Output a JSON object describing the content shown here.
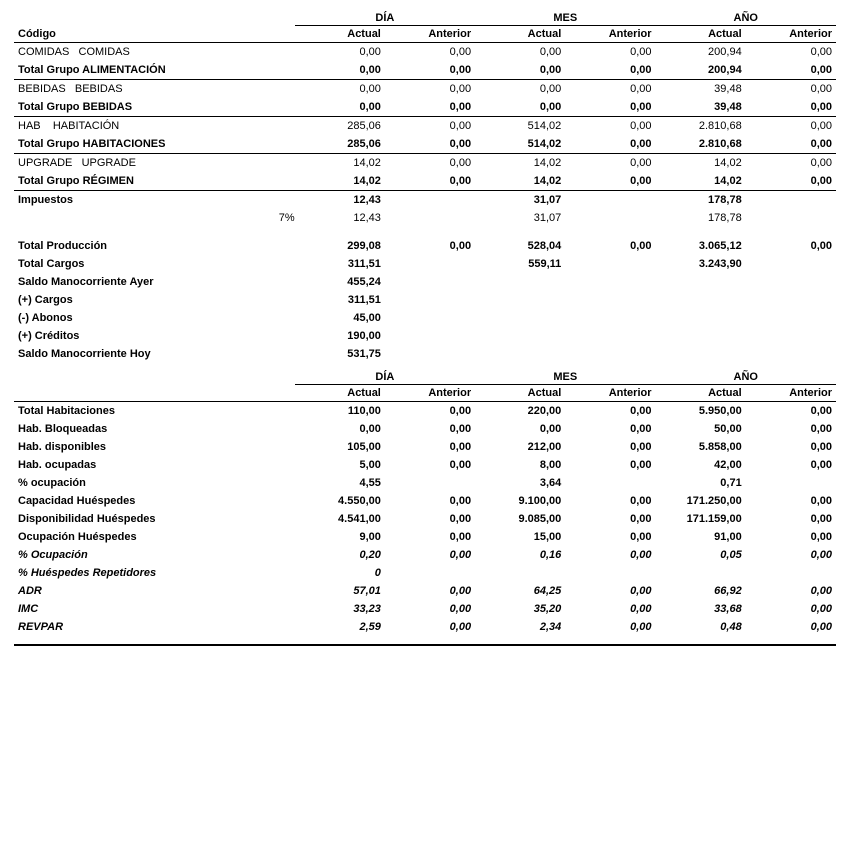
{
  "headers": {
    "codigo": "Código",
    "periods": [
      "DÍA",
      "MES",
      "AÑO"
    ],
    "sub": [
      "Actual",
      "Anterior"
    ]
  },
  "section1": {
    "rows": [
      {
        "label": "COMIDAS   COMIDAS",
        "bold": false,
        "dia_a": "0,00",
        "dia_p": "0,00",
        "mes_a": "0,00",
        "mes_p": "0,00",
        "ano_a": "200,94",
        "ano_p": "0,00"
      },
      {
        "label": "Total Grupo ALIMENTACIÓN",
        "bold": true,
        "sep": true,
        "dia_a": "0,00",
        "dia_p": "0,00",
        "mes_a": "0,00",
        "mes_p": "0,00",
        "ano_a": "200,94",
        "ano_p": "0,00"
      },
      {
        "label": "BEBIDAS   BEBIDAS",
        "bold": false,
        "dia_a": "0,00",
        "dia_p": "0,00",
        "mes_a": "0,00",
        "mes_p": "0,00",
        "ano_a": "39,48",
        "ano_p": "0,00"
      },
      {
        "label": "Total Grupo BEBIDAS",
        "bold": true,
        "sep": true,
        "dia_a": "0,00",
        "dia_p": "0,00",
        "mes_a": "0,00",
        "mes_p": "0,00",
        "ano_a": "39,48",
        "ano_p": "0,00"
      },
      {
        "label": "HAB    HABITACIÓN",
        "bold": false,
        "dia_a": "285,06",
        "dia_p": "0,00",
        "mes_a": "514,02",
        "mes_p": "0,00",
        "ano_a": "2.810,68",
        "ano_p": "0,00"
      },
      {
        "label": "Total Grupo HABITACIONES",
        "bold": true,
        "sep": true,
        "dia_a": "285,06",
        "dia_p": "0,00",
        "mes_a": "514,02",
        "mes_p": "0,00",
        "ano_a": "2.810,68",
        "ano_p": "0,00"
      },
      {
        "label": "UPGRADE   UPGRADE",
        "bold": false,
        "dia_a": "14,02",
        "dia_p": "0,00",
        "mes_a": "14,02",
        "mes_p": "0,00",
        "ano_a": "14,02",
        "ano_p": "0,00"
      },
      {
        "label": "Total Grupo RÉGIMEN",
        "bold": true,
        "sep": true,
        "dia_a": "14,02",
        "dia_p": "0,00",
        "mes_a": "14,02",
        "mes_p": "0,00",
        "ano_a": "14,02",
        "ano_p": "0,00"
      },
      {
        "label": "Impuestos",
        "bold": true,
        "dia_a": "12,43",
        "dia_p": "",
        "mes_a": "31,07",
        "mes_p": "",
        "ano_a": "178,78",
        "ano_p": ""
      },
      {
        "label": "",
        "rate": "7%",
        "bold": false,
        "dia_a": "12,43",
        "dia_p": "",
        "mes_a": "31,07",
        "mes_p": "",
        "ano_a": "178,78",
        "ano_p": ""
      },
      {
        "spacer": true
      },
      {
        "label": "Total Producción",
        "bold": true,
        "dia_a": "299,08",
        "dia_p": "0,00",
        "mes_a": "528,04",
        "mes_p": "0,00",
        "ano_a": "3.065,12",
        "ano_p": "0,00"
      },
      {
        "label": "Total Cargos",
        "bold": true,
        "dia_a": "311,51",
        "dia_p": "",
        "mes_a": "559,11",
        "mes_p": "",
        "ano_a": "3.243,90",
        "ano_p": ""
      },
      {
        "label": "Saldo Manocorriente Ayer",
        "bold": true,
        "dia_a": "455,24",
        "dia_p": "",
        "mes_a": "",
        "mes_p": "",
        "ano_a": "",
        "ano_p": ""
      },
      {
        "label": "(+) Cargos",
        "bold": true,
        "dia_a": "311,51",
        "dia_p": "",
        "mes_a": "",
        "mes_p": "",
        "ano_a": "",
        "ano_p": ""
      },
      {
        "label": "(-) Abonos",
        "bold": true,
        "dia_a": "45,00",
        "dia_p": "",
        "mes_a": "",
        "mes_p": "",
        "ano_a": "",
        "ano_p": ""
      },
      {
        "label": "(+) Créditos",
        "bold": true,
        "dia_a": "190,00",
        "dia_p": "",
        "mes_a": "",
        "mes_p": "",
        "ano_a": "",
        "ano_p": ""
      },
      {
        "label": "Saldo Manocorriente Hoy",
        "bold": true,
        "dia_a": "531,75",
        "dia_p": "",
        "mes_a": "",
        "mes_p": "",
        "ano_a": "",
        "ano_p": ""
      }
    ]
  },
  "section2": {
    "rows": [
      {
        "label": "Total Habitaciones",
        "bold": true,
        "dia_a": "110,00",
        "dia_p": "0,00",
        "mes_a": "220,00",
        "mes_p": "0,00",
        "ano_a": "5.950,00",
        "ano_p": "0,00"
      },
      {
        "label": "Hab. Bloqueadas",
        "bold": true,
        "dia_a": "0,00",
        "dia_p": "0,00",
        "mes_a": "0,00",
        "mes_p": "0,00",
        "ano_a": "50,00",
        "ano_p": "0,00"
      },
      {
        "label": "Hab. disponibles",
        "bold": true,
        "dia_a": "105,00",
        "dia_p": "0,00",
        "mes_a": "212,00",
        "mes_p": "0,00",
        "ano_a": "5.858,00",
        "ano_p": "0,00"
      },
      {
        "label": "Hab. ocupadas",
        "bold": true,
        "dia_a": "5,00",
        "dia_p": "0,00",
        "mes_a": "8,00",
        "mes_p": "0,00",
        "ano_a": "42,00",
        "ano_p": "0,00"
      },
      {
        "label": "% ocupación",
        "bold": true,
        "dia_a": "4,55",
        "dia_p": "",
        "mes_a": "3,64",
        "mes_p": "",
        "ano_a": "0,71",
        "ano_p": ""
      },
      {
        "label": "Capacidad Huéspedes",
        "bold": true,
        "dia_a": "4.550,00",
        "dia_p": "0,00",
        "mes_a": "9.100,00",
        "mes_p": "0,00",
        "ano_a": "171.250,00",
        "ano_p": "0,00"
      },
      {
        "label": "Disponibilidad Huéspedes",
        "bold": true,
        "dia_a": "4.541,00",
        "dia_p": "0,00",
        "mes_a": "9.085,00",
        "mes_p": "0,00",
        "ano_a": "171.159,00",
        "ano_p": "0,00"
      },
      {
        "label": "Ocupación Huéspedes",
        "bold": true,
        "dia_a": "9,00",
        "dia_p": "0,00",
        "mes_a": "15,00",
        "mes_p": "0,00",
        "ano_a": "91,00",
        "ano_p": "0,00"
      },
      {
        "label": "% Ocupación",
        "bold": true,
        "italic": true,
        "dia_a": "0,20",
        "dia_p": "0,00",
        "mes_a": "0,16",
        "mes_p": "0,00",
        "ano_a": "0,05",
        "ano_p": "0,00"
      },
      {
        "label": "% Huéspedes Repetidores",
        "bold": true,
        "italic": true,
        "dia_a": "0",
        "dia_p": "",
        "mes_a": "",
        "mes_p": "",
        "ano_a": "",
        "ano_p": ""
      },
      {
        "label": "ADR",
        "bold": true,
        "italic": true,
        "dia_a": "57,01",
        "dia_p": "0,00",
        "mes_a": "64,25",
        "mes_p": "0,00",
        "ano_a": "66,92",
        "ano_p": "0,00"
      },
      {
        "label": "IMC",
        "bold": true,
        "italic": true,
        "dia_a": "33,23",
        "dia_p": "0,00",
        "mes_a": "35,20",
        "mes_p": "0,00",
        "ano_a": "33,68",
        "ano_p": "0,00"
      },
      {
        "label": "REVPAR",
        "bold": true,
        "italic": true,
        "dia_a": "2,59",
        "dia_p": "0,00",
        "mes_a": "2,34",
        "mes_p": "0,00",
        "ano_a": "0,48",
        "ano_p": "0,00"
      }
    ]
  }
}
